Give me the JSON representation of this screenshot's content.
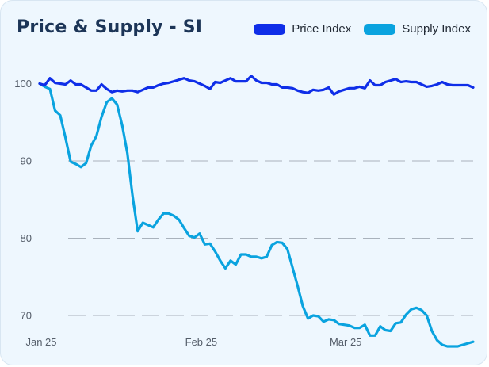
{
  "chart_data": {
    "type": "line",
    "title": "Price & Supply - SI",
    "xlabel": "",
    "ylabel": "",
    "ylim": [
      66,
      101
    ],
    "x_ticks": [
      {
        "label": "Jan 25",
        "index": 0
      },
      {
        "label": "Feb 25",
        "index": 31
      },
      {
        "label": "Mar 25",
        "index": 59
      }
    ],
    "y_ticks": [
      70,
      80,
      90,
      100
    ],
    "grid": "horizontal dashed",
    "legend_position": "top-right",
    "series": [
      {
        "name": "Price Index",
        "color": "#0f2ee8",
        "values": [
          100.0,
          99.8,
          100.7,
          100.1,
          100.0,
          99.9,
          100.4,
          99.9,
          99.9,
          99.5,
          99.1,
          99.1,
          99.9,
          99.3,
          98.9,
          99.1,
          99.0,
          99.1,
          99.1,
          98.9,
          99.2,
          99.5,
          99.5,
          99.8,
          100.0,
          100.1,
          100.3,
          100.5,
          100.7,
          100.4,
          100.3,
          100.0,
          99.7,
          99.3,
          100.2,
          100.1,
          100.4,
          100.7,
          100.3,
          100.3,
          100.3,
          101.0,
          100.4,
          100.1,
          100.1,
          99.9,
          99.9,
          99.5,
          99.5,
          99.4,
          99.1,
          98.9,
          98.8,
          99.2,
          99.1,
          99.2,
          99.5,
          98.6,
          99.0,
          99.2,
          99.4,
          99.4,
          99.6,
          99.4,
          100.4,
          99.8,
          99.8,
          100.2,
          100.4,
          100.6,
          100.2,
          100.3,
          100.2,
          100.2,
          99.9,
          99.6,
          99.7,
          99.9,
          100.2,
          99.9,
          99.8,
          99.8,
          99.8,
          99.8,
          99.5
        ]
      },
      {
        "name": "Supply Index",
        "color": "#0aa3df",
        "values": [
          100.0,
          99.6,
          99.3,
          96.5,
          95.9,
          93.0,
          89.9,
          89.6,
          89.2,
          89.7,
          92.0,
          93.2,
          95.7,
          97.6,
          98.1,
          97.3,
          94.6,
          91.0,
          85.5,
          80.9,
          82.0,
          81.7,
          81.4,
          82.4,
          83.2,
          83.2,
          82.9,
          82.4,
          81.3,
          80.3,
          80.1,
          80.6,
          79.2,
          79.3,
          78.3,
          77.1,
          76.1,
          77.1,
          76.6,
          77.9,
          77.9,
          77.6,
          77.6,
          77.4,
          77.6,
          79.1,
          79.5,
          79.4,
          78.6,
          76.2,
          73.8,
          71.2,
          69.6,
          70.0,
          69.9,
          69.2,
          69.5,
          69.4,
          68.9,
          68.8,
          68.7,
          68.4,
          68.4,
          68.8,
          67.4,
          67.4,
          68.6,
          68.1,
          68.0,
          69.0,
          69.1,
          70.1,
          70.8,
          71.0,
          70.7,
          70.0,
          68.0,
          66.8,
          66.2,
          66.0,
          66.0,
          66.0,
          66.2,
          66.4,
          66.6
        ]
      }
    ]
  }
}
